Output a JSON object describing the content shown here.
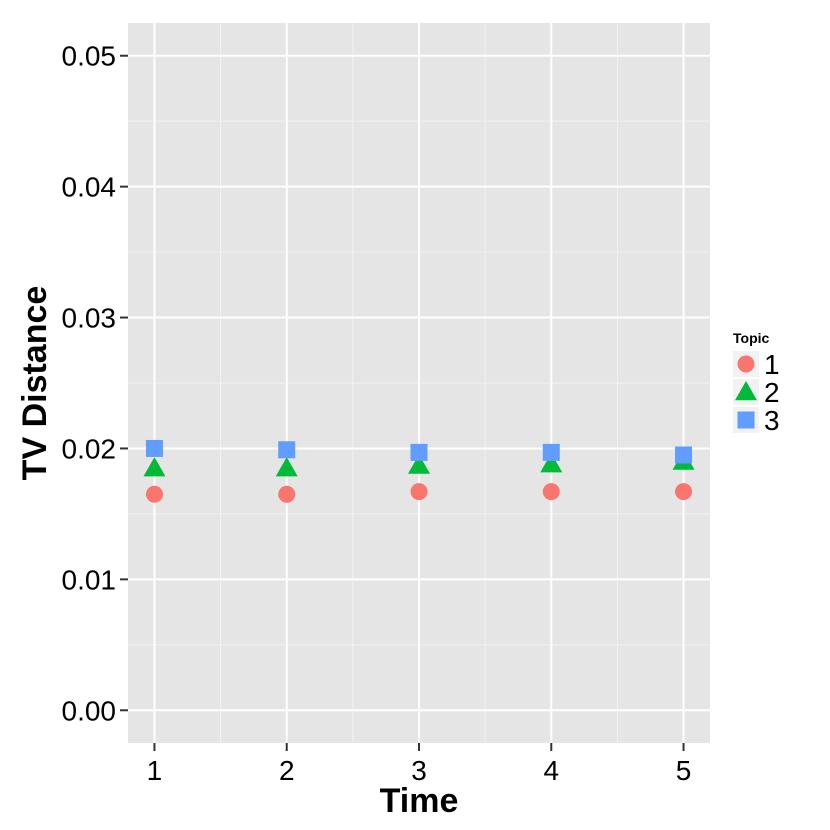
{
  "chart_data": {
    "type": "scatter",
    "x": [
      1,
      2,
      3,
      4,
      5
    ],
    "xlabel": "Time",
    "ylabel": "TV Distance",
    "xlim": [
      0.8,
      5.2
    ],
    "ylim": [
      -0.0025,
      0.0525
    ],
    "xticks": [
      1,
      2,
      3,
      4,
      5
    ],
    "yticks": [
      0,
      0.01,
      0.02,
      0.03,
      0.04,
      0.05
    ],
    "ytick_labels": [
      "0.00",
      "0.01",
      "0.02",
      "0.03",
      "0.04",
      "0.05"
    ],
    "grid": true,
    "legend": {
      "title": "Topic",
      "position": "right"
    },
    "series": [
      {
        "name": "1",
        "shape": "circle",
        "color": "#F8766D",
        "values": [
          0.0165,
          0.0165,
          0.0167,
          0.0167,
          0.0167
        ]
      },
      {
        "name": "2",
        "shape": "triangle",
        "color": "#00BA38",
        "values": [
          0.0185,
          0.0185,
          0.0187,
          0.0188,
          0.019
        ]
      },
      {
        "name": "3",
        "shape": "square",
        "color": "#619CFF",
        "values": [
          0.02,
          0.0199,
          0.0197,
          0.0197,
          0.0195
        ]
      }
    ]
  },
  "colors": {
    "panel_background": "#E5E5E5",
    "grid_major": "#FFFFFF",
    "grid_minor": "#F2F2F2"
  }
}
